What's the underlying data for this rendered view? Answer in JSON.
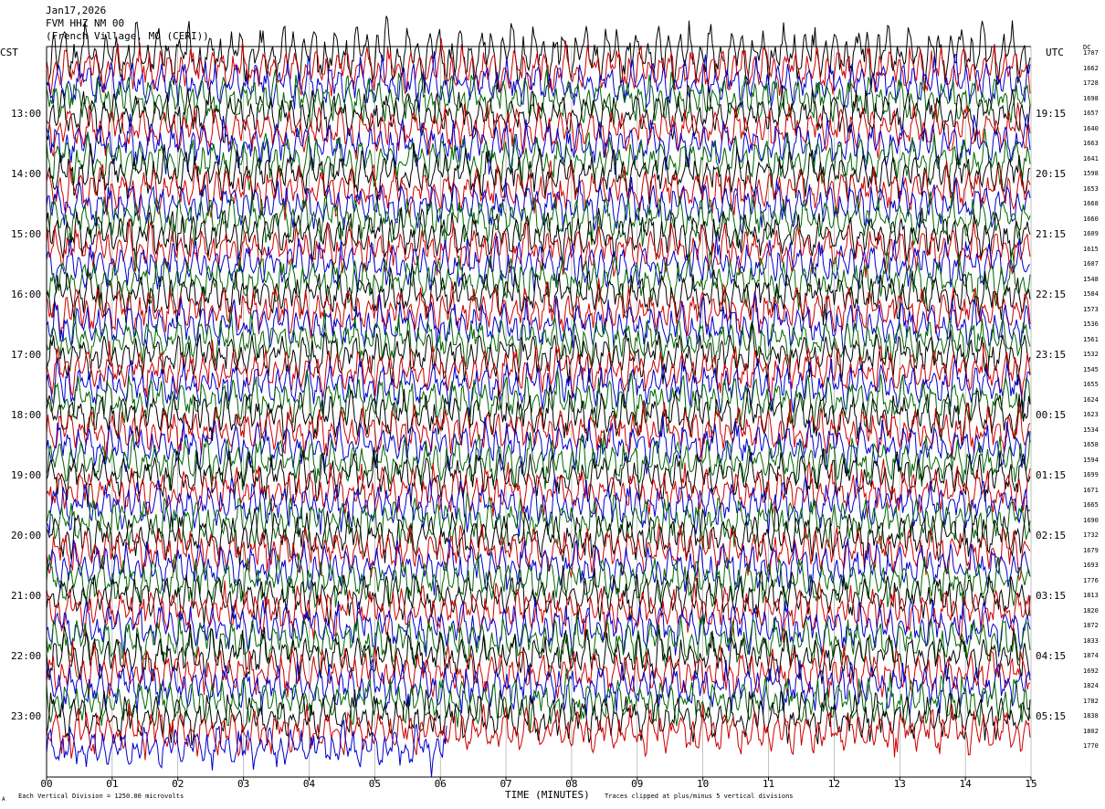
{
  "header": {
    "date": "Jan17,2026",
    "channel": "FVM HHZ NM 00",
    "location": "(French Village, MO (CERI))"
  },
  "timezones": {
    "left": "CST",
    "right": "UTC",
    "dc_header": "DC"
  },
  "notes": {
    "scale": "Each Vertical Division = 1250.00 microvolts",
    "clip": "Traces clipped at plus/minus 5 vertical divisions",
    "corner": "A"
  },
  "colors": {
    "trace_cycle": [
      "#000000",
      "#cc0000",
      "#0000cc",
      "#006600"
    ]
  },
  "chart_data": {
    "type": "line",
    "xlabel": "TIME (MINUTES)",
    "x_ticks": [
      "00",
      "01",
      "02",
      "03",
      "04",
      "05",
      "06",
      "07",
      "08",
      "09",
      "10",
      "11",
      "12",
      "13",
      "14",
      "15"
    ],
    "xlim": [
      0,
      15
    ],
    "left_labels": [
      "13:00",
      "14:00",
      "15:00",
      "16:00",
      "17:00",
      "18:00",
      "19:00",
      "20:00",
      "21:00",
      "22:00",
      "23:00"
    ],
    "right_labels": [
      "19:15",
      "20:15",
      "21:15",
      "22:15",
      "23:15",
      "00:15",
      "01:15",
      "02:15",
      "03:15",
      "04:15",
      "05:15"
    ],
    "dc_offsets": [
      "1707",
      "1662",
      "1728",
      "1698",
      "1657",
      "1640",
      "1663",
      "1641",
      "1598",
      "1653",
      "1668",
      "1660",
      "1609",
      "1615",
      "1607",
      "1548",
      "1584",
      "1573",
      "1536",
      "1561",
      "1532",
      "1545",
      "1655",
      "1624",
      "1623",
      "1534",
      "1658",
      "1594",
      "1699",
      "1671",
      "1665",
      "1690",
      "1732",
      "1679",
      "1693",
      "1776",
      "1813",
      "1820",
      "1872",
      "1833",
      "1874",
      "1692",
      "1824",
      "1782",
      "1838",
      "1802",
      "1770"
    ],
    "last_trace_minutes": 6.1
  }
}
